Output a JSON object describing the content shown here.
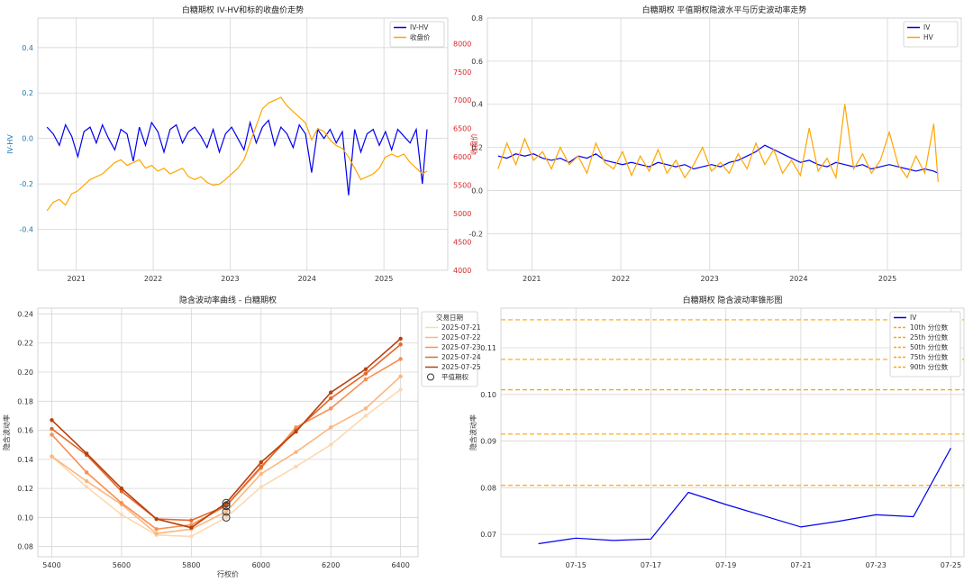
{
  "chart_data": [
    {
      "type": "line",
      "title": "白糖期权 IV-HV和标的收盘价走势",
      "xlabel": "",
      "ylabel": "IV-HV",
      "y2label": "收盘价",
      "ylim": [
        -0.58,
        0.53
      ],
      "y2lim": [
        4000,
        8450
      ],
      "xlim": [
        2020.5,
        2025.83
      ],
      "xticks": [
        2021,
        2022,
        2023,
        2024,
        2025
      ],
      "xtick_labels": [
        "2021",
        "2022",
        "2023",
        "2024",
        "2025"
      ],
      "yticks": [
        -0.4,
        -0.2,
        0.0,
        0.2,
        0.4
      ],
      "ytick_labels": [
        "-0.4",
        "-0.2",
        "0.0",
        "0.2",
        "0.4"
      ],
      "y2ticks": [
        4000,
        4500,
        5000,
        5500,
        6000,
        6500,
        7000,
        7500,
        8000
      ],
      "y2tick_labels": [
        "4000",
        "4500",
        "5000",
        "5500",
        "6000",
        "6500",
        "7000",
        "7500",
        "8000"
      ],
      "grid": true,
      "legend_position": "upper-right",
      "series": [
        {
          "name": "IV-HV",
          "color": "#0000ee",
          "axis": "left",
          "x": [
            2020.62,
            2020.7,
            2020.78,
            2020.86,
            2020.94,
            2021.02,
            2021.1,
            2021.18,
            2021.26,
            2021.34,
            2021.42,
            2021.5,
            2021.58,
            2021.66,
            2021.74,
            2021.82,
            2021.9,
            2021.98,
            2022.06,
            2022.14,
            2022.22,
            2022.3,
            2022.38,
            2022.46,
            2022.54,
            2022.62,
            2022.7,
            2022.78,
            2022.86,
            2022.94,
            2023.02,
            2023.1,
            2023.18,
            2023.26,
            2023.34,
            2023.42,
            2023.5,
            2023.58,
            2023.66,
            2023.74,
            2023.82,
            2023.9,
            2023.98,
            2024.06,
            2024.14,
            2024.22,
            2024.3,
            2024.38,
            2024.46,
            2024.54,
            2024.62,
            2024.7,
            2024.78,
            2024.86,
            2024.94,
            2025.02,
            2025.1,
            2025.18,
            2025.26,
            2025.34,
            2025.42,
            2025.5,
            2025.56
          ],
          "values": [
            0.05,
            0.02,
            -0.03,
            0.06,
            0.01,
            -0.08,
            0.03,
            0.05,
            -0.02,
            0.06,
            0.0,
            -0.05,
            0.04,
            0.02,
            -0.1,
            0.05,
            -0.03,
            0.07,
            0.03,
            -0.06,
            0.04,
            0.06,
            -0.02,
            0.03,
            0.05,
            0.01,
            -0.04,
            0.04,
            -0.06,
            0.02,
            0.05,
            0.0,
            -0.05,
            0.07,
            -0.02,
            0.05,
            0.08,
            -0.03,
            0.05,
            0.02,
            -0.04,
            0.06,
            0.02,
            -0.15,
            0.04,
            0.0,
            0.04,
            -0.02,
            0.03,
            -0.25,
            0.04,
            -0.06,
            0.02,
            0.04,
            -0.03,
            0.03,
            -0.05,
            0.04,
            0.01,
            -0.02,
            0.04,
            -0.2,
            0.04
          ]
        },
        {
          "name": "收盘价",
          "color": "#ffa500",
          "axis": "right",
          "x": [
            2020.62,
            2020.7,
            2020.78,
            2020.86,
            2020.94,
            2021.02,
            2021.1,
            2021.18,
            2021.26,
            2021.34,
            2021.42,
            2021.5,
            2021.58,
            2021.66,
            2021.74,
            2021.82,
            2021.9,
            2021.98,
            2022.06,
            2022.14,
            2022.22,
            2022.3,
            2022.38,
            2022.46,
            2022.54,
            2022.62,
            2022.7,
            2022.78,
            2022.86,
            2022.94,
            2023.02,
            2023.1,
            2023.18,
            2023.26,
            2023.34,
            2023.42,
            2023.5,
            2023.58,
            2023.66,
            2023.74,
            2023.82,
            2023.9,
            2023.98,
            2024.06,
            2024.14,
            2024.22,
            2024.3,
            2024.38,
            2024.46,
            2024.54,
            2024.62,
            2024.7,
            2024.78,
            2024.86,
            2024.94,
            2025.02,
            2025.1,
            2025.18,
            2025.26,
            2025.34,
            2025.42,
            2025.5,
            2025.56
          ],
          "values": [
            5050,
            5200,
            5250,
            5150,
            5350,
            5400,
            5500,
            5600,
            5650,
            5700,
            5800,
            5900,
            5950,
            5850,
            5900,
            5950,
            5800,
            5850,
            5750,
            5800,
            5700,
            5750,
            5800,
            5650,
            5600,
            5650,
            5550,
            5500,
            5520,
            5600,
            5700,
            5800,
            5950,
            6250,
            6550,
            6850,
            6950,
            7000,
            7050,
            6900,
            6800,
            6700,
            6600,
            6300,
            6500,
            6450,
            6300,
            6200,
            6150,
            6000,
            5800,
            5600,
            5650,
            5700,
            5800,
            6000,
            6050,
            6000,
            6050,
            5900,
            5800,
            5700,
            5750
          ]
        }
      ]
    },
    {
      "type": "line",
      "title": "白糖期权 平值期权隐波水平与历史波动率走势",
      "xlabel": "",
      "ylabel": "",
      "ylim": [
        -0.37,
        0.8
      ],
      "xlim": [
        2020.5,
        2025.83
      ],
      "xticks": [
        2021,
        2022,
        2023,
        2024,
        2025
      ],
      "xtick_labels": [
        "2021",
        "2022",
        "2023",
        "2024",
        "2025"
      ],
      "yticks": [
        -0.2,
        0.0,
        0.2,
        0.4,
        0.6,
        0.8
      ],
      "ytick_labels": [
        "-0.2",
        "0.0",
        "0.2",
        "0.4",
        "0.6",
        "0.8"
      ],
      "grid": true,
      "legend_position": "upper-right",
      "series": [
        {
          "name": "IV",
          "color": "#0000ee",
          "x": [
            2020.62,
            2020.72,
            2020.82,
            2020.92,
            2021.02,
            2021.12,
            2021.22,
            2021.32,
            2021.42,
            2021.52,
            2021.62,
            2021.72,
            2021.82,
            2021.92,
            2022.02,
            2022.12,
            2022.22,
            2022.32,
            2022.42,
            2022.52,
            2022.62,
            2022.72,
            2022.82,
            2022.92,
            2023.02,
            2023.12,
            2023.22,
            2023.32,
            2023.42,
            2023.52,
            2023.62,
            2023.72,
            2023.82,
            2023.92,
            2024.02,
            2024.12,
            2024.22,
            2024.32,
            2024.42,
            2024.52,
            2024.62,
            2024.72,
            2024.82,
            2024.92,
            2025.02,
            2025.12,
            2025.22,
            2025.32,
            2025.42,
            2025.52,
            2025.57
          ],
          "values": [
            0.16,
            0.15,
            0.17,
            0.16,
            0.17,
            0.15,
            0.14,
            0.15,
            0.13,
            0.16,
            0.15,
            0.17,
            0.14,
            0.13,
            0.12,
            0.13,
            0.12,
            0.11,
            0.13,
            0.12,
            0.11,
            0.12,
            0.1,
            0.11,
            0.12,
            0.11,
            0.13,
            0.14,
            0.16,
            0.18,
            0.21,
            0.19,
            0.17,
            0.15,
            0.13,
            0.14,
            0.12,
            0.11,
            0.13,
            0.12,
            0.11,
            0.12,
            0.1,
            0.11,
            0.12,
            0.11,
            0.1,
            0.09,
            0.1,
            0.09,
            0.08
          ]
        },
        {
          "name": "HV",
          "color": "#ffa500",
          "x": [
            2020.62,
            2020.72,
            2020.82,
            2020.92,
            2021.02,
            2021.12,
            2021.22,
            2021.32,
            2021.42,
            2021.52,
            2021.62,
            2021.72,
            2021.82,
            2021.92,
            2022.02,
            2022.12,
            2022.22,
            2022.32,
            2022.42,
            2022.52,
            2022.62,
            2022.72,
            2022.82,
            2022.92,
            2023.02,
            2023.12,
            2023.22,
            2023.32,
            2023.42,
            2023.52,
            2023.62,
            2023.72,
            2023.82,
            2023.92,
            2024.02,
            2024.12,
            2024.22,
            2024.32,
            2024.42,
            2024.52,
            2024.62,
            2024.72,
            2024.82,
            2024.92,
            2025.02,
            2025.12,
            2025.22,
            2025.32,
            2025.42,
            2025.52,
            2025.57
          ],
          "values": [
            0.1,
            0.22,
            0.12,
            0.24,
            0.14,
            0.18,
            0.1,
            0.2,
            0.12,
            0.16,
            0.08,
            0.22,
            0.13,
            0.1,
            0.18,
            0.07,
            0.16,
            0.09,
            0.19,
            0.08,
            0.14,
            0.06,
            0.12,
            0.2,
            0.09,
            0.13,
            0.08,
            0.17,
            0.1,
            0.22,
            0.12,
            0.19,
            0.08,
            0.14,
            0.07,
            0.29,
            0.09,
            0.15,
            0.06,
            0.4,
            0.1,
            0.17,
            0.08,
            0.14,
            0.27,
            0.12,
            0.06,
            0.16,
            0.08,
            0.31,
            0.04
          ]
        }
      ]
    },
    {
      "type": "line",
      "title": "隐含波动率曲线 - 白糖期权",
      "xlabel": "行权价",
      "ylabel": "隐含波动率",
      "xlim": [
        5360,
        6450
      ],
      "ylim": [
        0.073,
        0.244
      ],
      "xticks": [
        5400,
        5600,
        5800,
        6000,
        6200,
        6400
      ],
      "xtick_labels": [
        "5400",
        "5600",
        "5800",
        "6000",
        "6200",
        "6400"
      ],
      "yticks": [
        0.08,
        0.1,
        0.12,
        0.14,
        0.16,
        0.18,
        0.2,
        0.22,
        0.24
      ],
      "ytick_labels": [
        "0.08",
        "0.10",
        "0.12",
        "0.14",
        "0.16",
        "0.18",
        "0.20",
        "0.22",
        "0.24"
      ],
      "grid": true,
      "legend_title": "交易日期",
      "legend_position": "upper-right-outside",
      "categories": [
        5400,
        5500,
        5600,
        5700,
        5800,
        5900,
        6000,
        6100,
        6200,
        6300,
        6400
      ],
      "series": [
        {
          "name": "2025-07-21",
          "color": "#fdd8b2",
          "values": [
            0.142,
            0.121,
            0.102,
            0.088,
            0.087,
            0.1,
            0.121,
            0.135,
            0.15,
            0.17,
            0.188
          ]
        },
        {
          "name": "2025-07-22",
          "color": "#fdb57e",
          "values": [
            0.142,
            0.125,
            0.109,
            0.089,
            0.092,
            0.104,
            0.13,
            0.145,
            0.162,
            0.175,
            0.197
          ]
        },
        {
          "name": "2025-07-23",
          "color": "#f88f50",
          "values": [
            0.157,
            0.131,
            0.11,
            0.092,
            0.095,
            0.108,
            0.134,
            0.162,
            0.175,
            0.195,
            0.209
          ]
        },
        {
          "name": "2025-07-24",
          "color": "#e4672a",
          "values": [
            0.161,
            0.143,
            0.118,
            0.099,
            0.098,
            0.108,
            0.135,
            0.16,
            0.182,
            0.199,
            0.219
          ]
        },
        {
          "name": "2025-07-25",
          "color": "#b8400d",
          "values": [
            0.167,
            0.144,
            0.12,
            0.099,
            0.093,
            0.11,
            0.138,
            0.159,
            0.186,
            0.202,
            0.223
          ]
        }
      ],
      "markers": {
        "name": "平值期权",
        "x": 5900,
        "values": [
          0.1,
          0.104,
          0.108,
          0.108,
          0.11
        ]
      }
    },
    {
      "type": "line",
      "title": "白糖期权 隐含波动率锥形图",
      "xlabel": "",
      "ylabel": "隐含波动率",
      "xlim": [
        -1.0,
        11.35
      ],
      "ylim": [
        0.0652,
        0.1185
      ],
      "xticks": [
        1,
        3,
        5,
        7,
        9,
        11
      ],
      "xtick_labels": [
        "07-15",
        "07-17",
        "07-19",
        "07-21",
        "07-23",
        "07-25"
      ],
      "yticks": [
        0.07,
        0.08,
        0.09,
        0.1,
        0.11
      ],
      "ytick_labels": [
        "0.07",
        "0.08",
        "0.09",
        "0.10",
        "0.11"
      ],
      "grid": true,
      "legend_position": "upper-right",
      "series": [
        {
          "name": "IV",
          "color": "#0000ee",
          "x": [
            0,
            1,
            2,
            3,
            4,
            5,
            6,
            7,
            8,
            9,
            10,
            11
          ],
          "values": [
            0.068,
            0.0692,
            0.0687,
            0.069,
            0.079,
            0.0764,
            0.074,
            0.0716,
            0.0728,
            0.0742,
            0.0738,
            0.0885
          ]
        }
      ],
      "hlines": [
        {
          "name": "10th 分位数",
          "value": 0.0805,
          "color": "#ffa500"
        },
        {
          "name": "25th 分位数",
          "value": 0.0915,
          "color": "#ffa500"
        },
        {
          "name": "50th 分位数",
          "value": 0.101,
          "color": "#ffa500"
        },
        {
          "name": "75th 分位数",
          "value": 0.1075,
          "color": "#ffa500"
        },
        {
          "name": "90th 分位数",
          "value": 0.116,
          "color": "#ffa500"
        }
      ]
    }
  ]
}
